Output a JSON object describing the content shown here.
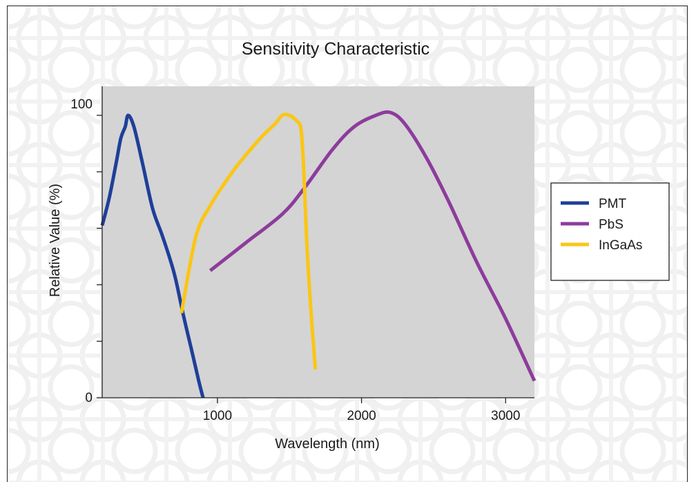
{
  "chart_data": {
    "type": "line",
    "title": "Sensitivity Characteristic",
    "xlabel": "Wavelength (nm)",
    "ylabel": "Relative Value (%)",
    "xlim": [
      200,
      3200
    ],
    "ylim": [
      0,
      100
    ],
    "x_ticks": [
      1000,
      2000,
      3000
    ],
    "y_tick_labels": [
      {
        "value": 0,
        "label": "0"
      },
      {
        "value": 100,
        "label": "100"
      }
    ],
    "y_minor_ticks": [
      20,
      40,
      60,
      80
    ],
    "grid": false,
    "legend_position": "right",
    "plot_background": "#d4d4d4",
    "series": [
      {
        "name": "PMT",
        "color": "#1f3f99",
        "x": [
          200,
          250,
          300,
          330,
          360,
          380,
          420,
          480,
          550,
          620,
          700,
          760,
          820,
          870,
          900
        ],
        "y": [
          61,
          71,
          84,
          92,
          96,
          100,
          96,
          83,
          67,
          57,
          44,
          30,
          17,
          6,
          0
        ]
      },
      {
        "name": "PbS",
        "color": "#8d3c9c",
        "x": [
          950,
          1200,
          1450,
          1600,
          1800,
          1950,
          2100,
          2200,
          2300,
          2450,
          2600,
          2800,
          3000,
          3200
        ],
        "y": [
          45,
          55,
          65,
          74,
          88,
          96,
          100,
          101,
          97,
          85,
          70,
          48,
          28,
          6
        ]
      },
      {
        "name": "InGaAs",
        "color": "#fbc613",
        "x": [
          750,
          850,
          950,
          1050,
          1150,
          1300,
          1400,
          1450,
          1500,
          1550,
          1580,
          1600,
          1620,
          1650,
          1680
        ],
        "y": [
          30,
          57,
          68,
          76,
          83,
          92,
          97,
          100,
          100,
          98,
          95,
          80,
          55,
          30,
          10
        ]
      }
    ]
  }
}
